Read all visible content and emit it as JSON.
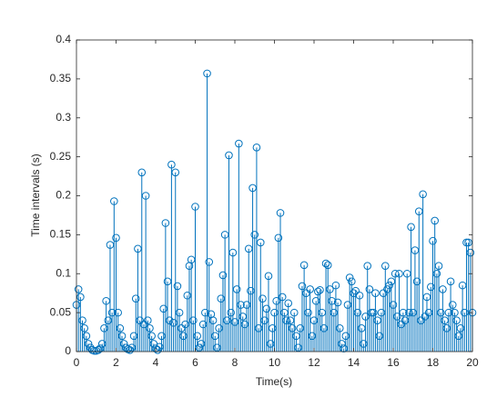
{
  "chart_data": {
    "type": "stem",
    "xlabel": "Time(s)",
    "ylabel": "Time intervals (s)",
    "color": "#0072bd",
    "x": [
      0,
      0.1,
      0.2,
      0.3,
      0.4,
      0.5,
      0.6,
      0.7,
      0.8,
      0.9,
      1,
      1.1,
      1.2,
      1.3,
      1.4,
      1.5,
      1.6,
      1.7,
      1.8,
      1.9,
      2,
      2.1,
      2.2,
      2.3,
      2.4,
      2.5,
      2.6,
      2.7,
      2.8,
      2.9,
      3,
      3.1,
      3.2,
      3.3,
      3.4,
      3.5,
      3.6,
      3.7,
      3.8,
      3.9,
      4,
      4.1,
      4.2,
      4.3,
      4.4,
      4.5,
      4.6,
      4.7,
      4.8,
      4.9,
      5,
      5.1,
      5.2,
      5.3,
      5.4,
      5.5,
      5.6,
      5.7,
      5.8,
      5.9,
      6,
      6.1,
      6.2,
      6.3,
      6.4,
      6.5,
      6.6,
      6.7,
      6.8,
      6.9,
      7,
      7.1,
      7.2,
      7.3,
      7.4,
      7.5,
      7.6,
      7.7,
      7.8,
      7.9,
      8,
      8.1,
      8.2,
      8.3,
      8.4,
      8.5,
      8.6,
      8.7,
      8.8,
      8.9,
      9,
      9.1,
      9.2,
      9.3,
      9.4,
      9.5,
      9.6,
      9.7,
      9.8,
      9.9,
      10,
      10.1,
      10.2,
      10.3,
      10.4,
      10.5,
      10.6,
      10.7,
      10.8,
      10.9,
      11,
      11.1,
      11.2,
      11.3,
      11.4,
      11.5,
      11.6,
      11.7,
      11.8,
      11.9,
      12,
      12.1,
      12.2,
      12.3,
      12.4,
      12.5,
      12.6,
      12.7,
      12.8,
      12.9,
      13,
      13.1,
      13.2,
      13.3,
      13.4,
      13.5,
      13.6,
      13.7,
      13.8,
      13.9,
      14,
      14.1,
      14.2,
      14.3,
      14.4,
      14.5,
      14.6,
      14.7,
      14.8,
      14.9,
      15,
      15.1,
      15.2,
      15.3,
      15.4,
      15.5,
      15.6,
      15.7,
      15.8,
      15.9,
      16,
      16.1,
      16.2,
      16.3,
      16.4,
      16.5,
      16.6,
      16.7,
      16.8,
      16.9,
      17,
      17.1,
      17.2,
      17.3,
      17.4,
      17.5,
      17.6,
      17.7,
      17.8,
      17.9,
      18,
      18.1,
      18.2,
      18.3,
      18.4,
      18.5,
      18.6,
      18.7,
      18.8,
      18.9,
      19,
      19.1,
      19.2,
      19.3,
      19.4,
      19.5,
      19.6,
      19.7,
      19.8,
      19.9,
      20
    ],
    "values": [
      0.06,
      0.08,
      0.07,
      0.04,
      0.03,
      0.02,
      0.01,
      0.005,
      0.002,
      0.001,
      0.001,
      0.002,
      0.004,
      0.01,
      0.03,
      0.065,
      0.04,
      0.137,
      0.05,
      0.193,
      0.146,
      0.05,
      0.03,
      0.02,
      0.01,
      0.005,
      0.003,
      0.002,
      0.005,
      0.02,
      0.068,
      0.132,
      0.04,
      0.23,
      0.035,
      0.2,
      0.04,
      0.03,
      0.02,
      0.01,
      0.004,
      0.002,
      0.006,
      0.02,
      0.055,
      0.165,
      0.09,
      0.04,
      0.24,
      0.037,
      0.23,
      0.084,
      0.05,
      0.03,
      0.02,
      0.035,
      0.072,
      0.11,
      0.118,
      0.04,
      0.186,
      0.02,
      0.005,
      0.01,
      0.035,
      0.05,
      0.357,
      0.115,
      0.048,
      0.04,
      0.02,
      0.005,
      0.03,
      0.068,
      0.098,
      0.15,
      0.04,
      0.252,
      0.05,
      0.127,
      0.038,
      0.08,
      0.267,
      0.06,
      0.045,
      0.035,
      0.06,
      0.132,
      0.078,
      0.21,
      0.15,
      0.262,
      0.03,
      0.14,
      0.068,
      0.04,
      0.055,
      0.097,
      0.01,
      0.03,
      0.05,
      0.065,
      0.146,
      0.178,
      0.07,
      0.05,
      0.04,
      0.062,
      0.04,
      0.03,
      0.05,
      0.02,
      0.005,
      0.03,
      0.084,
      0.111,
      0.075,
      0.05,
      0.08,
      0.02,
      0.04,
      0.065,
      0.077,
      0.079,
      0.05,
      0.03,
      0.113,
      0.111,
      0.08,
      0.065,
      0.05,
      0.085,
      0.063,
      0.03,
      0.01,
      0.004,
      0.02,
      0.06,
      0.095,
      0.09,
      0.075,
      0.078,
      0.05,
      0.072,
      0.03,
      0.01,
      0.045,
      0.11,
      0.08,
      0.05,
      0.05,
      0.075,
      0.04,
      0.02,
      0.05,
      0.075,
      0.11,
      0.08,
      0.085,
      0.09,
      0.06,
      0.1,
      0.045,
      0.1,
      0.035,
      0.05,
      0.04,
      0.1,
      0.05,
      0.16,
      0.05,
      0.13,
      0.09,
      0.18,
      0.04,
      0.202,
      0.045,
      0.07,
      0.05,
      0.083,
      0.142,
      0.168,
      0.1,
      0.11,
      0.05,
      0.08,
      0.04,
      0.03,
      0.05,
      0.09,
      0.06,
      0.05,
      0.04,
      0.02,
      0.03,
      0.085,
      0.05,
      0.14,
      0.14,
      0.127,
      0.05
    ],
    "xlim": [
      0,
      20
    ],
    "xticks": [
      0,
      2,
      4,
      6,
      8,
      10,
      12,
      14,
      16,
      18,
      20
    ],
    "ylim": [
      0,
      0.4
    ],
    "yticks": [
      0,
      0.05,
      0.1,
      0.15,
      0.2,
      0.25,
      0.3,
      0.35,
      0.4
    ]
  }
}
